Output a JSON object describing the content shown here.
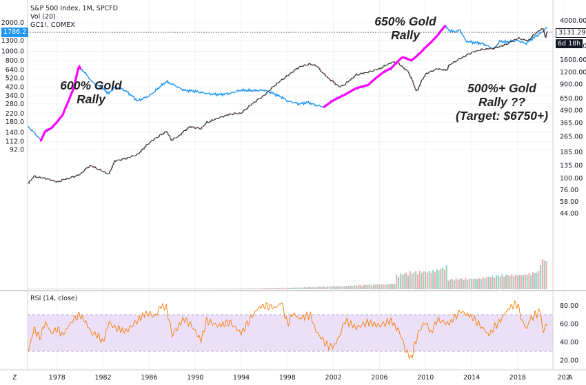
{
  "chart_data": {
    "type": "line",
    "title": "S&P 500 Index, 1M, SPCFD",
    "indicators": [
      "Vol (20)",
      "GC1!, COMEX"
    ],
    "rsi_label": "RSI (14, close)",
    "x_ticks": [
      "1978",
      "1982",
      "1986",
      "1990",
      "1994",
      "1998",
      "2002",
      "2006",
      "2010",
      "2014",
      "2018",
      "202"
    ],
    "left_axis_ticks": [
      "2000.0",
      "1600.0",
      "1300.0",
      "1000.0",
      "800.0",
      "640.0",
      "520.0",
      "420.0",
      "340.0",
      "280.0",
      "220.0",
      "180.0",
      "140.0",
      "112.0",
      "92.0"
    ],
    "right_axis_ticks": [
      "4000.00",
      "2800.00",
      "2200.00",
      "1600.00",
      "1200.00",
      "900.00",
      "650.00",
      "490.00",
      "365.00",
      "265.00",
      "185.00",
      "135.00",
      "100.00",
      "76.00",
      "58.00",
      "44.00"
    ],
    "rsi_axis_ticks": [
      "80.00",
      "60.00",
      "40.00",
      "20.00"
    ],
    "gold_price_tag": "1786.2",
    "sp500_price_tag": "3131.29",
    "countdown_tag": "6d 18h",
    "series": [
      {
        "name": "GC1!, COMEX",
        "color": "#2196f3",
        "x": [
          1975.5,
          1976.0,
          1976.6,
          1977.0,
          1977.5,
          1978.0,
          1978.5,
          1979.0,
          1979.5,
          1979.9,
          1980.05,
          1980.3,
          1980.6,
          1981.0,
          1981.5,
          1982.0,
          1982.5,
          1983.0,
          1983.5,
          1984.0,
          1984.5,
          1985.0,
          1985.5,
          1986.0,
          1986.5,
          1987.0,
          1987.5,
          1988.0,
          1988.5,
          1989.0,
          1990.0,
          1991.0,
          1992.0,
          1993.0,
          1994.0,
          1995.0,
          1996.0,
          1997.0,
          1997.5,
          1998.0,
          1999.0,
          1999.8,
          2000.5,
          2001.2,
          2002.0,
          2003.0,
          2004.0,
          2005.0,
          2006.0,
          2006.5,
          2007.0,
          2008.0,
          2008.8,
          2009.5,
          2010.0,
          2010.5,
          2011.0,
          2011.7,
          2012.0,
          2012.5,
          2013.0,
          2013.5,
          2014.0,
          2015.0,
          2015.9,
          2016.5,
          2017.0,
          2018.0,
          2018.7,
          2019.0,
          2019.5,
          2020.0,
          2020.4,
          2020.6
        ],
        "values": [
          160,
          140,
          115,
          145,
          155,
          180,
          215,
          300,
          420,
          700,
          650,
          620,
          560,
          480,
          440,
          400,
          360,
          420,
          410,
          380,
          340,
          300,
          320,
          340,
          380,
          430,
          480,
          450,
          420,
          390,
          380,
          360,
          350,
          360,
          390,
          385,
          390,
          350,
          330,
          300,
          280,
          290,
          270,
          260,
          305,
          350,
          410,
          440,
          560,
          620,
          660,
          870,
          800,
          950,
          1100,
          1250,
          1450,
          1850,
          1680,
          1600,
          1670,
          1280,
          1250,
          1200,
          1060,
          1280,
          1250,
          1300,
          1200,
          1290,
          1420,
          1550,
          1720,
          1786
        ]
      },
      {
        "name": "S&P 500 Index",
        "color": "#131722",
        "x": [
          1975.5,
          1976.0,
          1977.0,
          1978.0,
          1978.5,
          1979.0,
          1980.0,
          1980.5,
          1980.9,
          1981.5,
          1982.5,
          1983.0,
          1984.0,
          1985.0,
          1986.0,
          1987.5,
          1987.9,
          1988.5,
          1989.5,
          1990.5,
          1991.0,
          1992.0,
          1993.0,
          1994.0,
          1995.0,
          1996.0,
          1997.0,
          1998.0,
          1999.0,
          1999.9,
          2000.5,
          2001.0,
          2001.5,
          2002.5,
          2003.0,
          2004.0,
          2005.0,
          2006.0,
          2007.0,
          2007.5,
          2008.0,
          2008.5,
          2009.2,
          2009.6,
          2010.0,
          2011.0,
          2011.8,
          2012.0,
          2013.0,
          2014.0,
          2015.0,
          2016.0,
          2017.0,
          2018.0,
          2018.9,
          2019.5,
          2020.0,
          2020.2,
          2020.4,
          2020.6
        ],
        "values": [
          90,
          105,
          100,
          92,
          97,
          100,
          110,
          125,
          135,
          125,
          110,
          150,
          160,
          175,
          230,
          300,
          245,
          265,
          335,
          320,
          370,
          410,
          450,
          460,
          580,
          700,
          900,
          1100,
          1350,
          1450,
          1400,
          1200,
          1050,
          850,
          900,
          1130,
          1200,
          1300,
          1500,
          1520,
          1350,
          1200,
          750,
          950,
          1150,
          1300,
          1250,
          1400,
          1650,
          1900,
          2050,
          2100,
          2300,
          2650,
          2500,
          2950,
          3250,
          3300,
          2700,
          3131
        ]
      }
    ],
    "rsi": {
      "x": [
        1975.5,
        1976.0,
        1976.5,
        1977.0,
        1977.5,
        1978.0,
        1978.5,
        1979.0,
        1979.5,
        1980.0,
        1980.5,
        1981.0,
        1981.5,
        1982.0,
        1982.5,
        1983.0,
        1984.0,
        1985.0,
        1985.5,
        1986.0,
        1986.5,
        1987.0,
        1987.5,
        1988.0,
        1989.0,
        1989.7,
        1990.5,
        1991.0,
        1992.0,
        1993.0,
        1994.0,
        1995.0,
        1995.5,
        1996.0,
        1997.0,
        1997.5,
        1998.0,
        1998.5,
        1999.0,
        2000.0,
        2000.5,
        2001.0,
        2001.5,
        2002.0,
        2002.5,
        2003.0,
        2003.5,
        2004.0,
        2005.0,
        2006.0,
        2007.0,
        2007.8,
        2008.3,
        2008.8,
        2009.0,
        2009.5,
        2010.0,
        2010.5,
        2011.0,
        2012.0,
        2013.0,
        2014.0,
        2015.0,
        2015.5,
        2016.0,
        2016.5,
        2017.0,
        2017.5,
        2018.0,
        2018.3,
        2018.8,
        2019.0,
        2019.5,
        2020.0,
        2020.2,
        2020.4,
        2020.6
      ],
      "values": [
        30,
        55,
        45,
        62,
        50,
        55,
        48,
        58,
        66,
        70,
        62,
        50,
        48,
        40,
        62,
        56,
        52,
        64,
        70,
        72,
        68,
        80,
        78,
        48,
        66,
        58,
        42,
        64,
        58,
        62,
        50,
        70,
        78,
        80,
        78,
        84,
        60,
        72,
        66,
        70,
        52,
        44,
        36,
        35,
        46,
        64,
        60,
        56,
        62,
        58,
        64,
        50,
        30,
        22,
        35,
        54,
        62,
        50,
        65,
        60,
        74,
        68,
        55,
        48,
        57,
        64,
        74,
        80,
        82,
        66,
        54,
        64,
        70,
        74,
        48,
        60,
        58
      ]
    }
  }
}
